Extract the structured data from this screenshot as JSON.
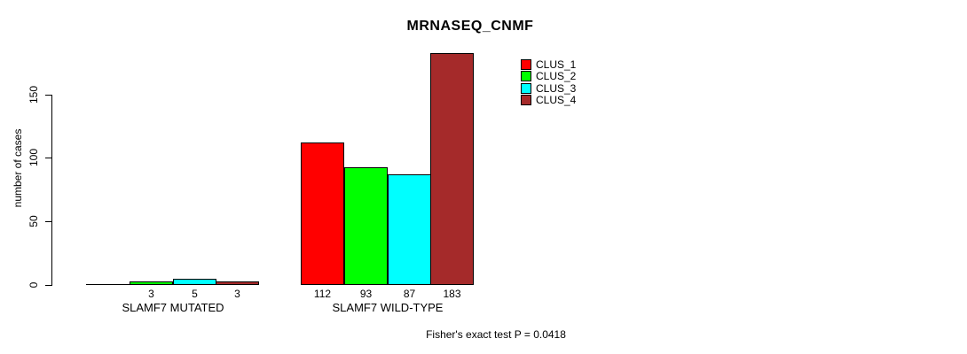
{
  "chart_data": {
    "type": "bar",
    "title": "MRNASEQ_CNMF",
    "xlabel": "",
    "ylabel": "number of cases",
    "ylim": [
      0,
      150
    ],
    "yticks": [
      0,
      50,
      100,
      150
    ],
    "grid": false,
    "background": "#FFFFFF",
    "legend_position": "top-right",
    "categories": [
      "SLAMF7 MUTATED",
      "SLAMF7 WILD-TYPE"
    ],
    "series": [
      {
        "name": "CLUS_1",
        "color": "#FF0000",
        "values": [
          0,
          112
        ]
      },
      {
        "name": "CLUS_2",
        "color": "#00FF00",
        "values": [
          3,
          93
        ]
      },
      {
        "name": "CLUS_3",
        "color": "#00FFFF",
        "values": [
          5,
          87
        ]
      },
      {
        "name": "CLUS_4",
        "color": "#A52A2A",
        "values": [
          3,
          183
        ]
      }
    ],
    "value_labels": [
      [
        "",
        "3",
        "5",
        "3"
      ],
      [
        "112",
        "93",
        "87",
        "183"
      ]
    ],
    "annotation": "Fisher's exact test P = 0.0418"
  }
}
